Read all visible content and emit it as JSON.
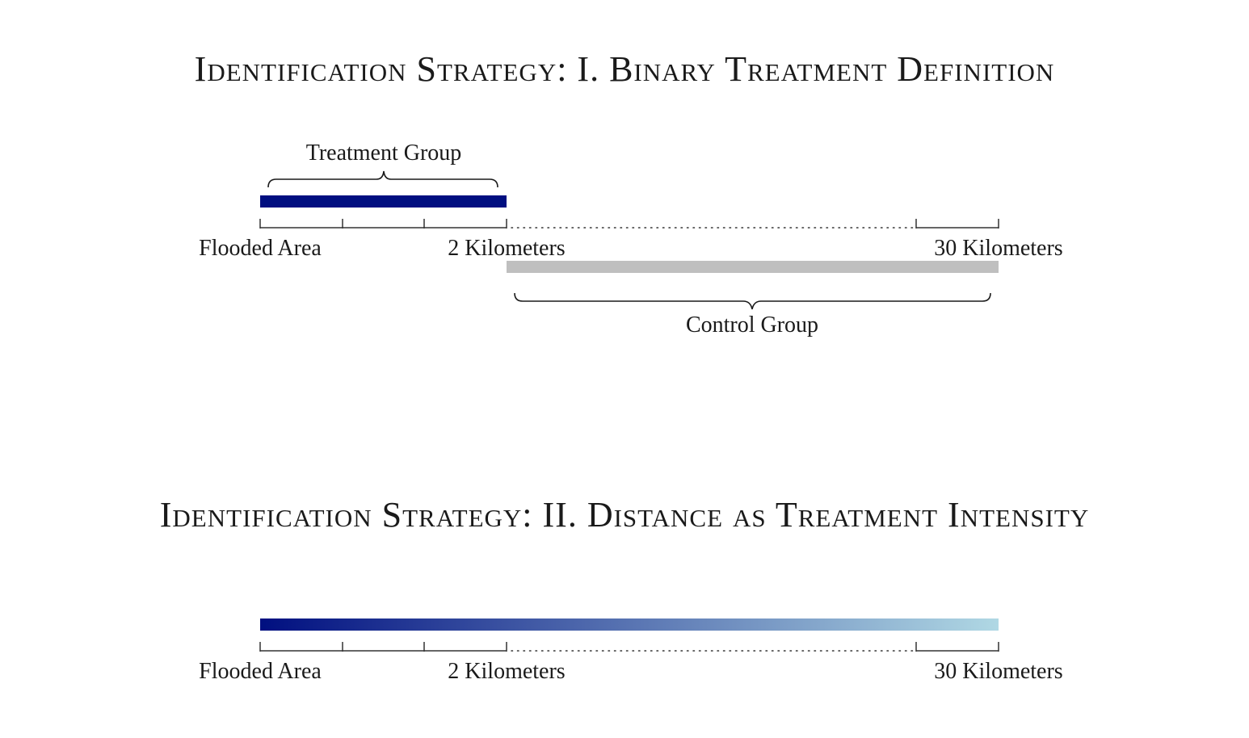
{
  "panel_1": {
    "title": "Identification Strategy: I. Binary Treatment Definition",
    "treatment_label": "Treatment Group",
    "control_label": "Control Group",
    "axis_labels": {
      "start": "Flooded Area",
      "mid": "2 Kilometers",
      "end": "30 Kilometers"
    }
  },
  "panel_2": {
    "title": "Identification Strategy: II. Distance as Treatment Intensity",
    "axis_labels": {
      "start": "Flooded Area",
      "mid": "2 Kilometers",
      "end": "30 Kilometers"
    }
  },
  "colors": {
    "treatment": "#000f80",
    "control": "#bfbfbf",
    "gradient_start": "#000f80",
    "gradient_end": "#b0d8e4",
    "axis": "#333333"
  }
}
